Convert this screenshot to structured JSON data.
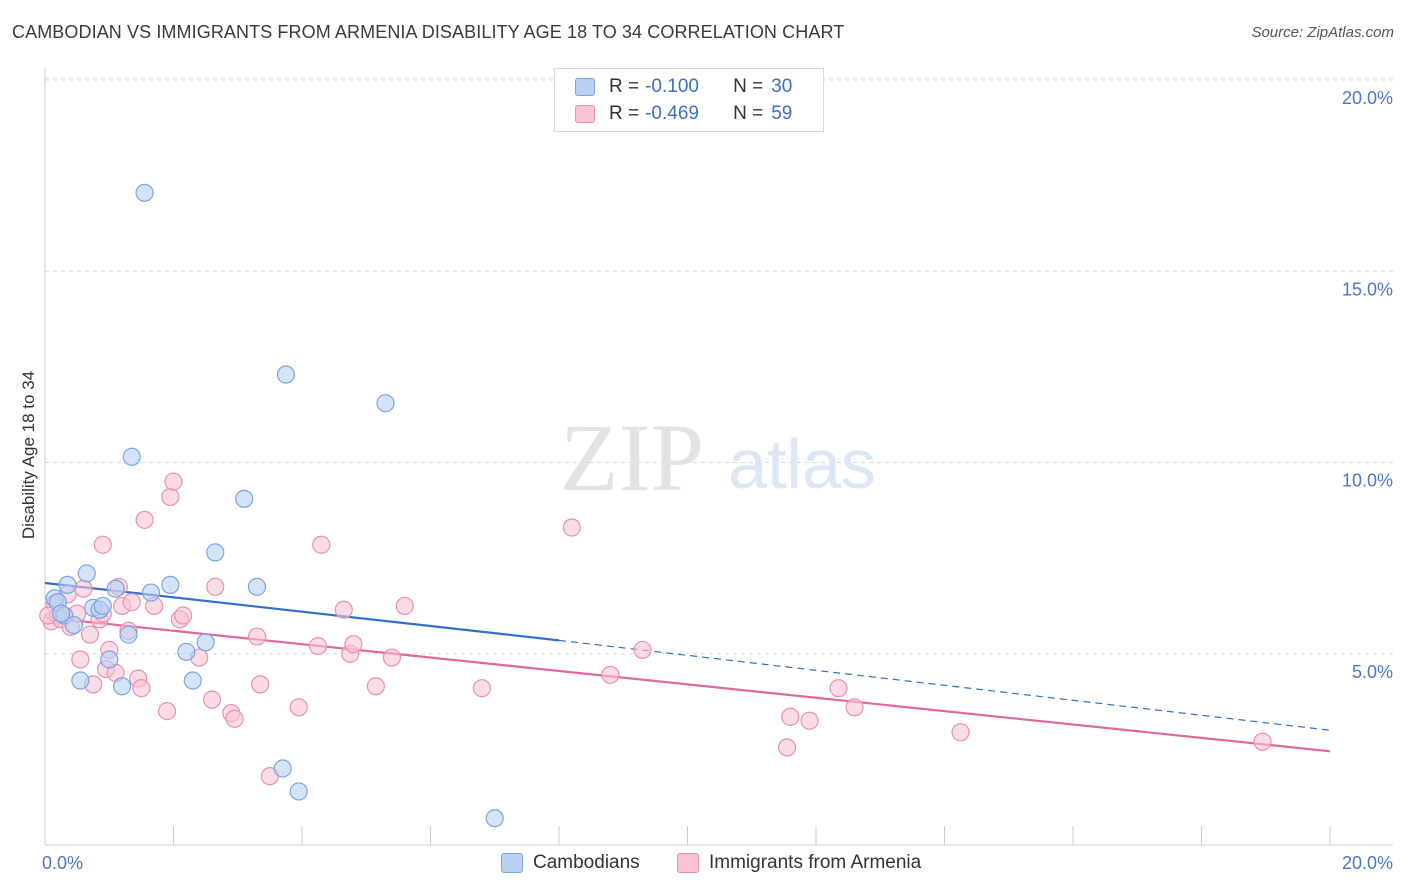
{
  "title": "CAMBODIAN VS IMMIGRANTS FROM ARMENIA DISABILITY AGE 18 TO 34 CORRELATION CHART",
  "source": "Source: ZipAtlas.com",
  "watermark": {
    "zip": "ZIP",
    "atlas": "atlas"
  },
  "legend": {
    "rows": [
      {
        "r_label": "R =",
        "r_value": "-0.100",
        "n_label": "N =",
        "n_value": "30"
      },
      {
        "r_label": "R =",
        "r_value": "-0.469",
        "n_label": "N =",
        "n_value": "59"
      }
    ]
  },
  "colors": {
    "cambodians_fill": "#b8d1f3",
    "cambodians_stroke": "#7aa6df",
    "cambodians_line": "#2f6fcf",
    "armenia_fill": "#f8c3d3",
    "armenia_stroke": "#eb90ad",
    "armenia_line": "#e0679a",
    "grid": "#d8d8d8",
    "tick_label": "#4a78c8"
  },
  "chart_data": {
    "type": "scatter",
    "title": "CAMBODIAN VS IMMIGRANTS FROM ARMENIA DISABILITY AGE 18 TO 34 CORRELATION CHART",
    "xlabel": "",
    "ylabel": "Disability Age 18 to 34",
    "xlim": [
      0,
      20
    ],
    "ylim": [
      0,
      20.5
    ],
    "x_tick_labels": [
      "0.0%",
      "20.0%"
    ],
    "y_ticks": [
      5,
      10,
      15,
      20
    ],
    "y_tick_labels": [
      "5.0%",
      "10.0%",
      "15.0%",
      "20.0%"
    ],
    "grid": true,
    "legend_position": "top-center",
    "series": [
      {
        "name": "Cambodians",
        "r": -0.1,
        "n": 30,
        "trend": {
          "x0": 0,
          "y0": 6.85,
          "x1": 8.0,
          "y1": 5.35,
          "dashed_to_x": 20,
          "dashed_to_y": 3.0
        },
        "points": [
          [
            0.15,
            6.45
          ],
          [
            0.2,
            6.35
          ],
          [
            0.3,
            6.0
          ],
          [
            0.35,
            6.8
          ],
          [
            0.45,
            5.75
          ],
          [
            0.55,
            4.3
          ],
          [
            0.65,
            7.1
          ],
          [
            0.75,
            6.2
          ],
          [
            0.85,
            6.15
          ],
          [
            0.9,
            6.25
          ],
          [
            1.0,
            4.85
          ],
          [
            1.1,
            6.7
          ],
          [
            1.2,
            4.15
          ],
          [
            1.3,
            5.5
          ],
          [
            1.35,
            10.15
          ],
          [
            1.55,
            17.05
          ],
          [
            1.65,
            6.6
          ],
          [
            1.95,
            6.8
          ],
          [
            2.2,
            5.05
          ],
          [
            2.3,
            4.3
          ],
          [
            2.5,
            5.3
          ],
          [
            2.65,
            7.65
          ],
          [
            3.1,
            9.05
          ],
          [
            3.3,
            6.75
          ],
          [
            3.7,
            2.0
          ],
          [
            3.75,
            12.3
          ],
          [
            3.95,
            1.4
          ],
          [
            5.3,
            11.55
          ],
          [
            7.0,
            0.7
          ],
          [
            0.25,
            6.05
          ]
        ]
      },
      {
        "name": "Immigrants from Armenia",
        "r": -0.469,
        "n": 59,
        "trend": {
          "x0": 0,
          "y0": 5.95,
          "x1": 20,
          "y1": 2.45
        },
        "points": [
          [
            0.1,
            5.85
          ],
          [
            0.15,
            6.3
          ],
          [
            0.2,
            6.0
          ],
          [
            0.25,
            5.9
          ],
          [
            0.35,
            6.55
          ],
          [
            0.4,
            5.7
          ],
          [
            0.5,
            6.05
          ],
          [
            0.55,
            4.85
          ],
          [
            0.6,
            6.7
          ],
          [
            0.7,
            5.5
          ],
          [
            0.75,
            4.2
          ],
          [
            0.85,
            5.9
          ],
          [
            0.9,
            6.05
          ],
          [
            0.9,
            7.85
          ],
          [
            0.95,
            4.6
          ],
          [
            1.0,
            5.1
          ],
          [
            1.1,
            4.5
          ],
          [
            1.15,
            6.75
          ],
          [
            1.2,
            6.25
          ],
          [
            1.3,
            5.6
          ],
          [
            1.35,
            6.35
          ],
          [
            1.45,
            4.35
          ],
          [
            1.5,
            4.1
          ],
          [
            1.55,
            8.5
          ],
          [
            1.7,
            6.25
          ],
          [
            1.9,
            3.5
          ],
          [
            1.95,
            9.1
          ],
          [
            2.0,
            9.5
          ],
          [
            2.1,
            5.9
          ],
          [
            2.15,
            6.0
          ],
          [
            2.4,
            4.9
          ],
          [
            2.6,
            3.8
          ],
          [
            2.65,
            6.75
          ],
          [
            2.9,
            3.45
          ],
          [
            2.95,
            3.3
          ],
          [
            3.3,
            5.45
          ],
          [
            3.35,
            4.2
          ],
          [
            3.5,
            1.8
          ],
          [
            3.95,
            3.6
          ],
          [
            4.25,
            5.2
          ],
          [
            4.3,
            7.85
          ],
          [
            4.65,
            6.15
          ],
          [
            4.75,
            5.0
          ],
          [
            4.8,
            5.25
          ],
          [
            5.15,
            4.15
          ],
          [
            5.4,
            4.9
          ],
          [
            5.6,
            6.25
          ],
          [
            6.8,
            4.1
          ],
          [
            8.2,
            8.3
          ],
          [
            8.8,
            4.45
          ],
          [
            9.3,
            5.1
          ],
          [
            11.55,
            2.55
          ],
          [
            11.6,
            3.35
          ],
          [
            11.9,
            3.25
          ],
          [
            12.35,
            4.1
          ],
          [
            12.6,
            3.6
          ],
          [
            14.25,
            2.95
          ],
          [
            18.95,
            2.7
          ],
          [
            0.05,
            6.0
          ]
        ]
      }
    ]
  },
  "bottom_legend": {
    "items": [
      {
        "label": "Cambodians"
      },
      {
        "label": "Immigrants from Armenia"
      }
    ]
  }
}
